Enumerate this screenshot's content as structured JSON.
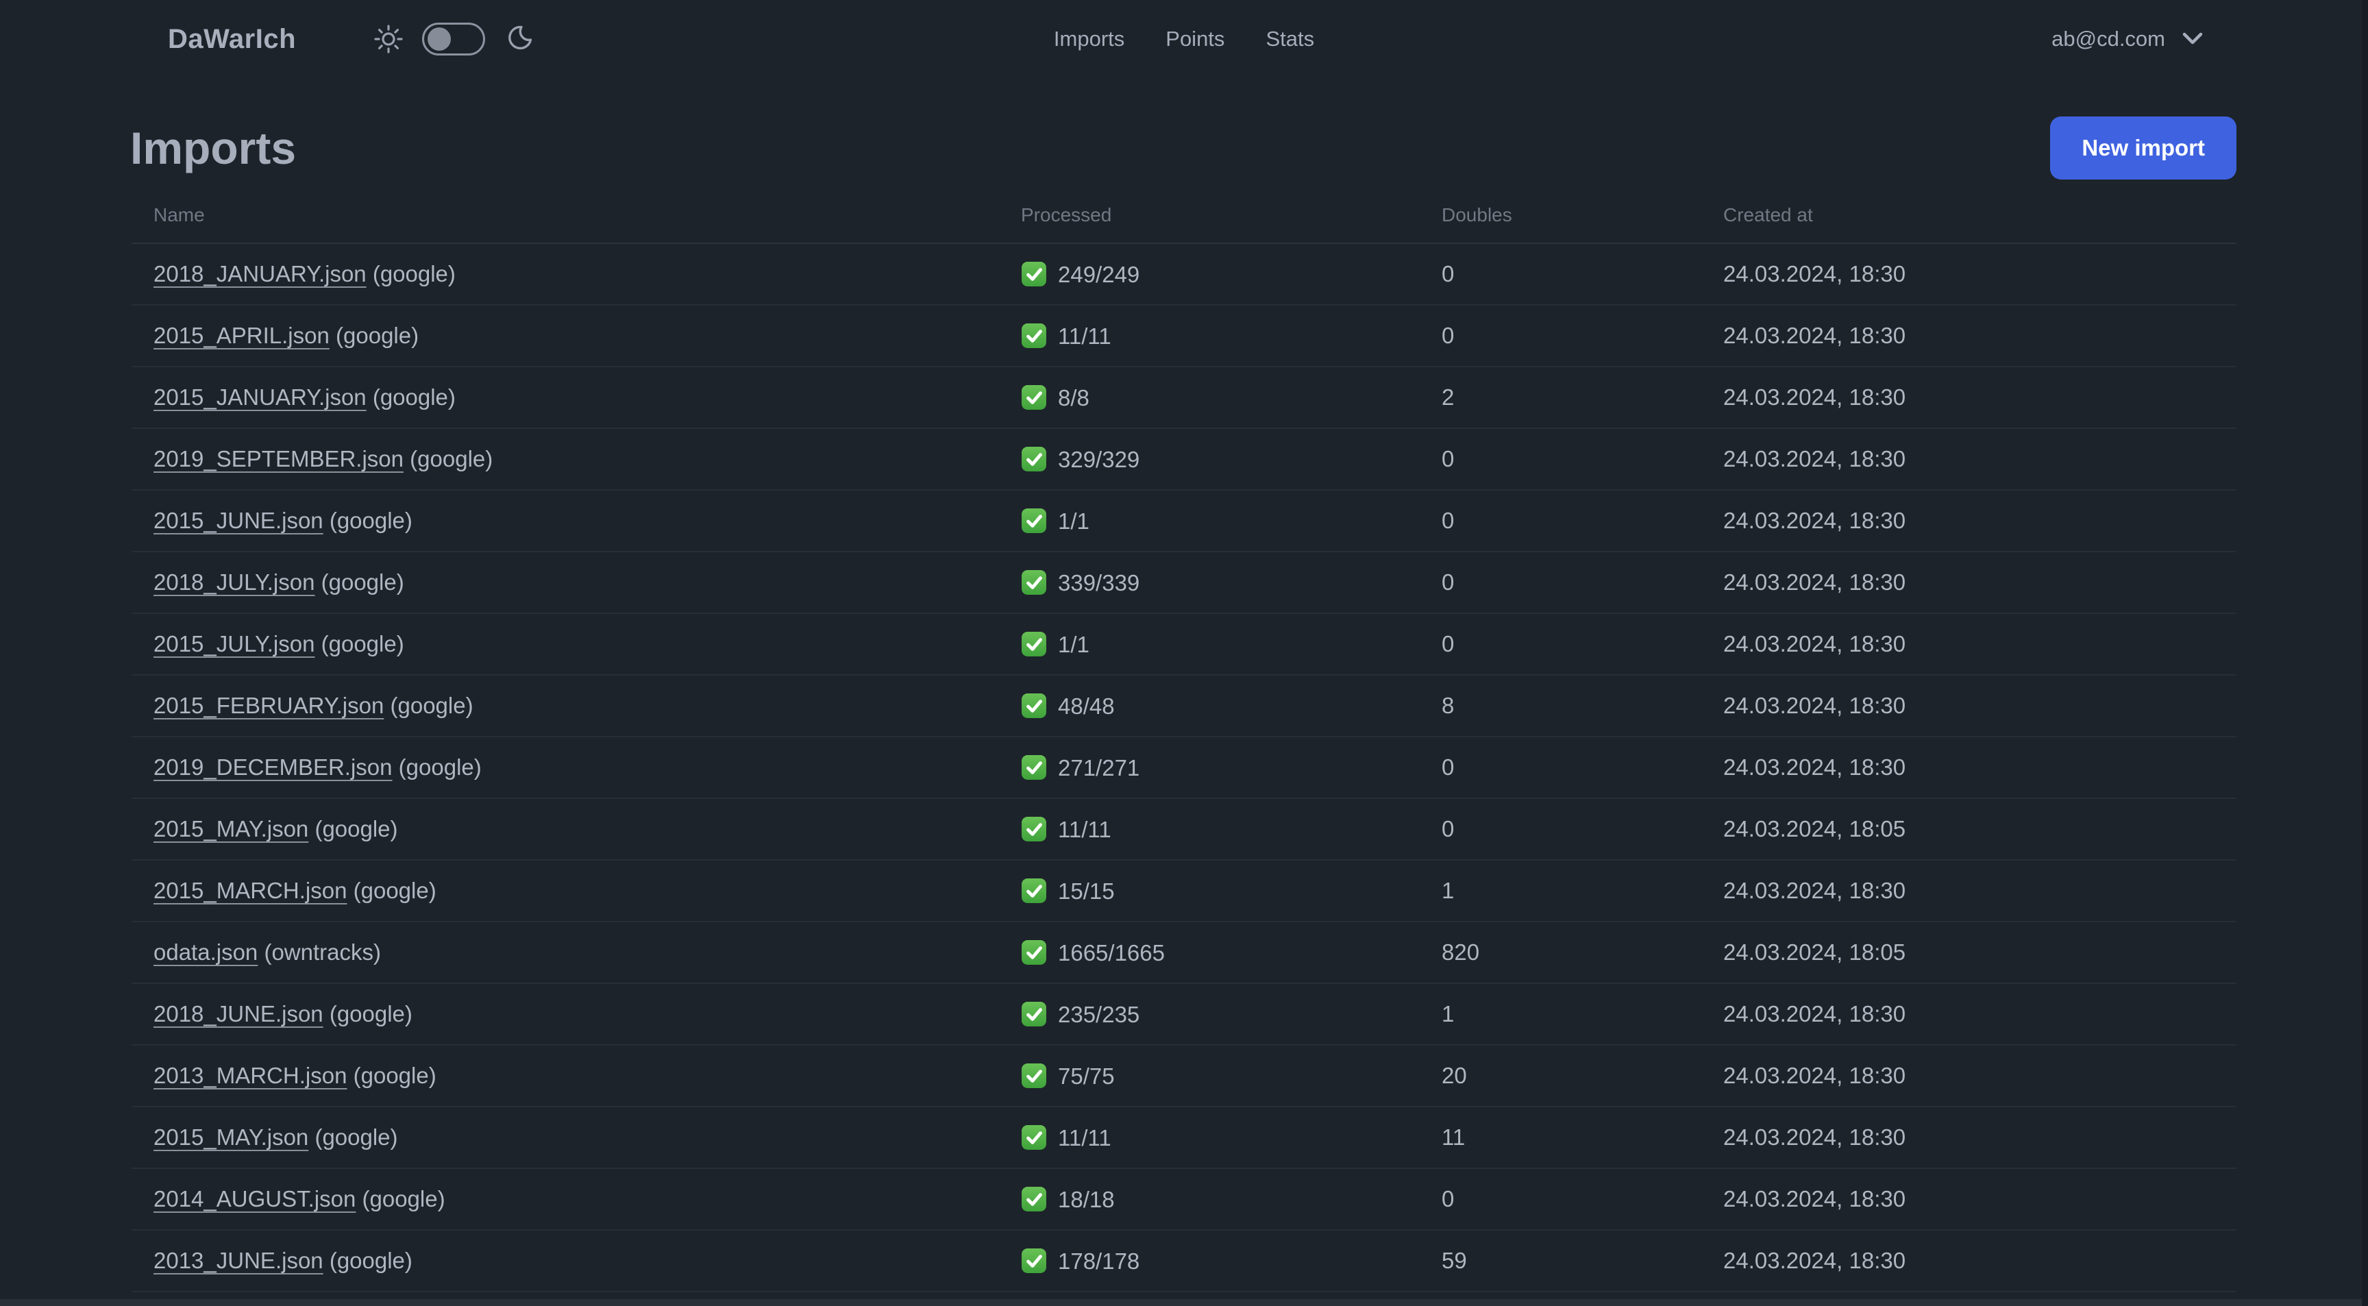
{
  "app": {
    "name": "DaWarIch"
  },
  "nav": {
    "links": [
      "Imports",
      "Points",
      "Stats"
    ],
    "user_email": "ab@cd.com",
    "theme_toggle": {
      "state": "dark",
      "left_icon": "sun-icon",
      "right_icon": "moon-icon"
    }
  },
  "page": {
    "title": "Imports",
    "new_import_label": "New import"
  },
  "table": {
    "columns": [
      "Name",
      "Processed",
      "Doubles",
      "Created at"
    ],
    "rows": [
      {
        "file": "2018_JANUARY.json",
        "source": "google",
        "processed": "249/249",
        "doubles": "0",
        "created_at": "24.03.2024, 18:30"
      },
      {
        "file": "2015_APRIL.json",
        "source": "google",
        "processed": "11/11",
        "doubles": "0",
        "created_at": "24.03.2024, 18:30"
      },
      {
        "file": "2015_JANUARY.json",
        "source": "google",
        "processed": "8/8",
        "doubles": "2",
        "created_at": "24.03.2024, 18:30"
      },
      {
        "file": "2019_SEPTEMBER.json",
        "source": "google",
        "processed": "329/329",
        "doubles": "0",
        "created_at": "24.03.2024, 18:30"
      },
      {
        "file": "2015_JUNE.json",
        "source": "google",
        "processed": "1/1",
        "doubles": "0",
        "created_at": "24.03.2024, 18:30"
      },
      {
        "file": "2018_JULY.json",
        "source": "google",
        "processed": "339/339",
        "doubles": "0",
        "created_at": "24.03.2024, 18:30"
      },
      {
        "file": "2015_JULY.json",
        "source": "google",
        "processed": "1/1",
        "doubles": "0",
        "created_at": "24.03.2024, 18:30"
      },
      {
        "file": "2015_FEBRUARY.json",
        "source": "google",
        "processed": "48/48",
        "doubles": "8",
        "created_at": "24.03.2024, 18:30"
      },
      {
        "file": "2019_DECEMBER.json",
        "source": "google",
        "processed": "271/271",
        "doubles": "0",
        "created_at": "24.03.2024, 18:30"
      },
      {
        "file": "2015_MAY.json",
        "source": "google",
        "processed": "11/11",
        "doubles": "0",
        "created_at": "24.03.2024, 18:05"
      },
      {
        "file": "2015_MARCH.json",
        "source": "google",
        "processed": "15/15",
        "doubles": "1",
        "created_at": "24.03.2024, 18:30"
      },
      {
        "file": "odata.json",
        "source": "owntracks",
        "processed": "1665/1665",
        "doubles": "820",
        "created_at": "24.03.2024, 18:05"
      },
      {
        "file": "2018_JUNE.json",
        "source": "google",
        "processed": "235/235",
        "doubles": "1",
        "created_at": "24.03.2024, 18:30"
      },
      {
        "file": "2013_MARCH.json",
        "source": "google",
        "processed": "75/75",
        "doubles": "20",
        "created_at": "24.03.2024, 18:30"
      },
      {
        "file": "2015_MAY.json",
        "source": "google",
        "processed": "11/11",
        "doubles": "11",
        "created_at": "24.03.2024, 18:30"
      },
      {
        "file": "2014_AUGUST.json",
        "source": "google",
        "processed": "18/18",
        "doubles": "0",
        "created_at": "24.03.2024, 18:30"
      },
      {
        "file": "2013_JUNE.json",
        "source": "google",
        "processed": "178/178",
        "doubles": "59",
        "created_at": "24.03.2024, 18:30"
      }
    ],
    "partial_next_row": {
      "processed_check_visible": true
    },
    "status_icon": "check-mark-green"
  },
  "colors": {
    "background": "#1d232a",
    "text": "#a6adbb",
    "accent_blue": "#3f63e0",
    "check_green": "#4caf50",
    "button_text": "#ffffff"
  }
}
